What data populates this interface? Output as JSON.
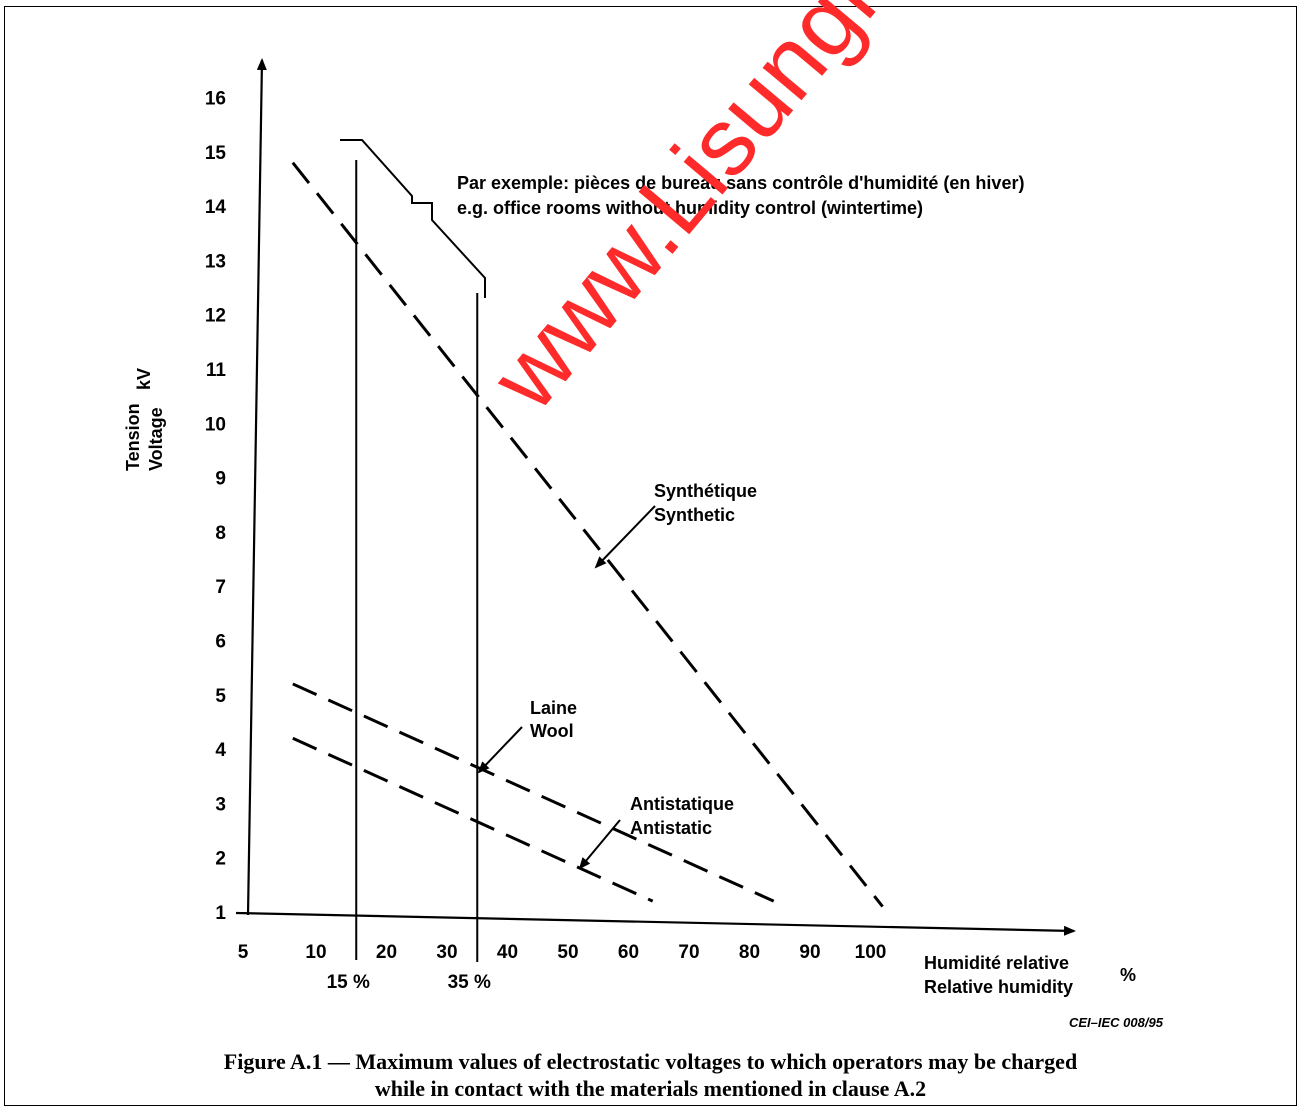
{
  "chart_data": {
    "type": "line",
    "x_ticks": [
      "5",
      "10",
      "20",
      "30",
      "40",
      "50",
      "60",
      "70",
      "80",
      "90",
      "100"
    ],
    "y_ticks": [
      "1",
      "2",
      "3",
      "4",
      "5",
      "6",
      "7",
      "8",
      "9",
      "10",
      "11",
      "12",
      "13",
      "14",
      "15",
      "16"
    ],
    "xlabel_fr": "Humidité relative",
    "xlabel_en": "Relative humidity",
    "xlabel_unit": "%",
    "ylabel_fr": "Tension",
    "ylabel_en": "Voltage",
    "ylabel_unit": "kV",
    "xlim": [
      5,
      110
    ],
    "ylim": [
      1,
      17
    ],
    "series": [
      {
        "name": "Synthétique / Synthetic",
        "label_fr": "Synthétique",
        "label_en": "Synthetic",
        "x": [
          8,
          102
        ],
        "y": [
          14.8,
          1.1
        ]
      },
      {
        "name": "Laine / Wool",
        "label_fr": "Laine",
        "label_en": "Wool",
        "x": [
          8,
          84
        ],
        "y": [
          5.2,
          1.2
        ]
      },
      {
        "name": "Antistatique / Antistatic",
        "label_fr": "Antistatique",
        "label_en": "Antistatic",
        "x": [
          8,
          64
        ],
        "y": [
          4.2,
          1.2
        ]
      }
    ],
    "reference_lines": [
      {
        "label": "15 %",
        "x": 15
      },
      {
        "label": "35 %",
        "x": 35
      }
    ],
    "annotation_fr": "Par exemple: pièces de bureau sans contrôle d'humidité (en hiver)",
    "annotation_en": "e.g. office rooms without humidity control (wintertime)"
  },
  "figure_code": "CEI–IEC 008/95",
  "caption_line1": "Figure A.1 — Maximum values of electrostatic voltages to which operators may be charged",
  "caption_line2": "while in contact with the materials mentioned in clause A.2",
  "watermark": "www.Lisungroup.co",
  "colors": {
    "ink": "#000000",
    "watermark": "#ff2a2a"
  }
}
